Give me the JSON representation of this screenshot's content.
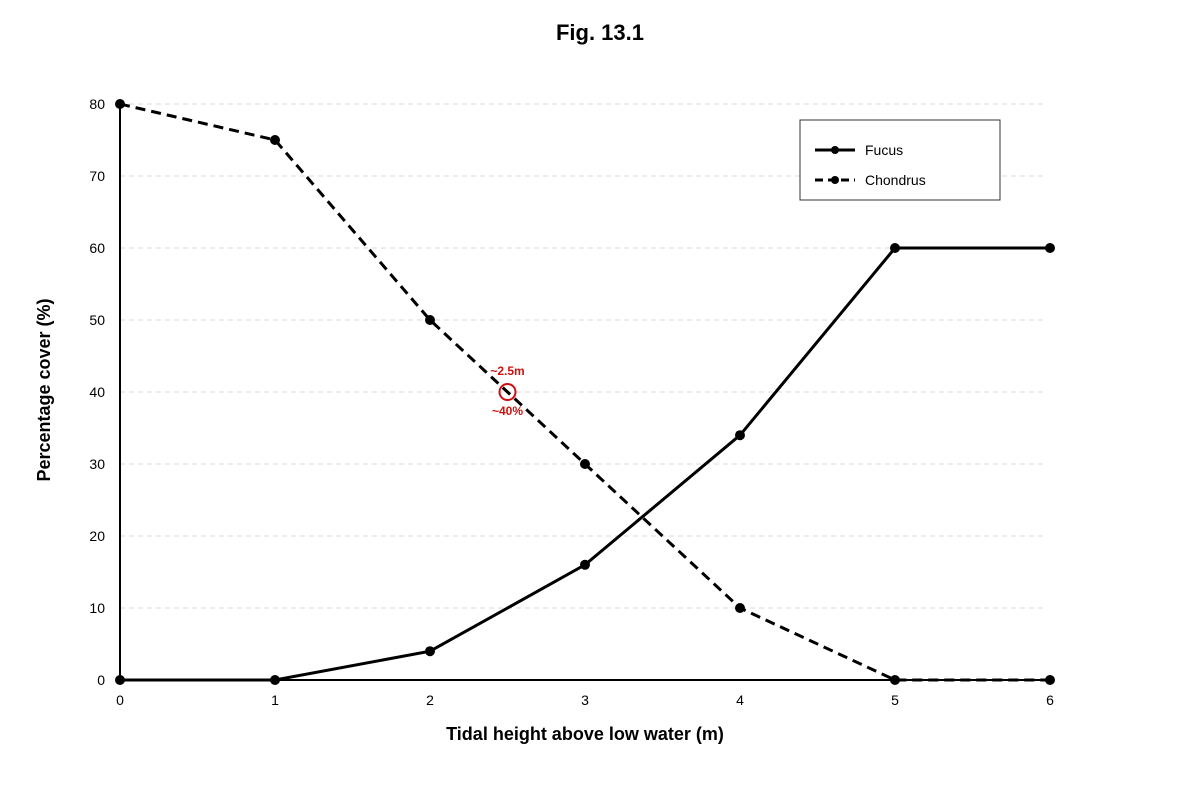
{
  "chart_data": {
    "type": "line",
    "title": "Fig. 13.1",
    "xlabel": "Tidal height above low water (m)",
    "ylabel": "Percentage cover (%)",
    "x": [
      0,
      1,
      2,
      3,
      4,
      5,
      6
    ],
    "xlim": [
      0,
      6
    ],
    "ylim": [
      0,
      80
    ],
    "xticks": [
      0,
      1,
      2,
      3,
      4,
      5,
      6
    ],
    "yticks": [
      0,
      10,
      20,
      30,
      40,
      50,
      60,
      70,
      80
    ],
    "grid": "horizontal-dashed",
    "legend_position": "top-right",
    "series": [
      {
        "name": "Fucus",
        "style": "solid",
        "color": "#000000",
        "values": [
          0,
          0,
          4,
          16,
          34,
          60,
          60
        ]
      },
      {
        "name": "Chondrus",
        "style": "dashed",
        "color": "#000000",
        "values": [
          80,
          75,
          50,
          30,
          10,
          0,
          0
        ]
      }
    ],
    "annotation": {
      "x": 2.5,
      "y": 40,
      "label_top": "~2.5m",
      "label_bottom": "~40%",
      "color": "#cc1111"
    }
  }
}
